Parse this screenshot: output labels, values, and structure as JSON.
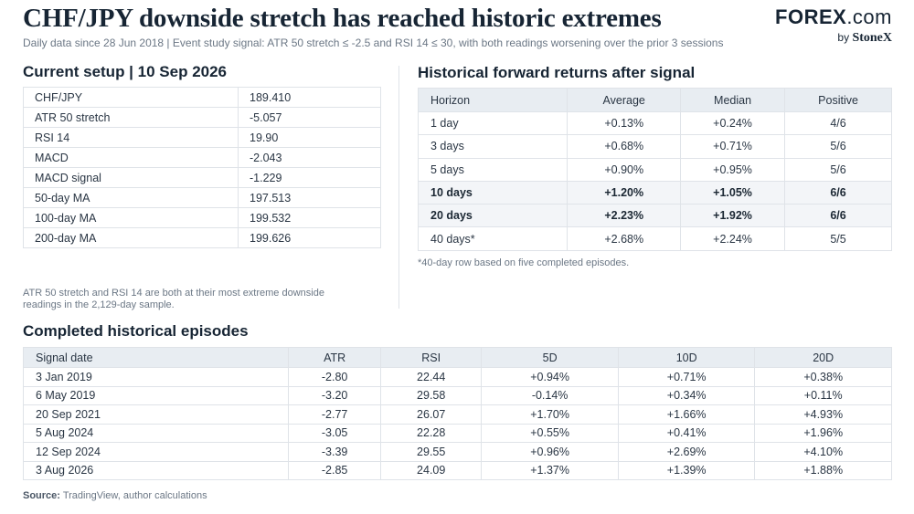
{
  "header": {
    "title": "CHF/JPY downside stretch has reached historic extremes",
    "subtitle": "Daily data since 28 Jun 2018 | Event study signal: ATR 50 stretch ≤ -2.5 and RSI 14 ≤ 30, with both readings worsening over the prior 3 sessions"
  },
  "logo": {
    "main_left": "FOREX",
    "main_right": ".com",
    "by": "by",
    "brand": "StoneX"
  },
  "setup": {
    "title": "Current setup | 10 Sep 2026",
    "rows": [
      {
        "label": "CHF/JPY",
        "value": "189.410"
      },
      {
        "label": "ATR 50 stretch",
        "value": "-5.057"
      },
      {
        "label": "RSI 14",
        "value": "19.90"
      },
      {
        "label": "MACD",
        "value": "-2.043"
      },
      {
        "label": "MACD signal",
        "value": "-1.229"
      },
      {
        "label": "50-day MA",
        "value": "197.513"
      },
      {
        "label": "100-day MA",
        "value": "199.532"
      },
      {
        "label": "200-day MA",
        "value": "199.626"
      }
    ],
    "note_line1": "ATR 50 stretch and RSI 14 are both at their most extreme downside",
    "note_line2": "readings in the 2,129-day sample."
  },
  "forward": {
    "title": "Historical forward returns after signal",
    "headers": [
      "Horizon",
      "Average",
      "Median",
      "Positive"
    ],
    "rows": [
      {
        "horizon": "1 day",
        "average": "+0.13%",
        "median": "+0.24%",
        "positive": "4/6"
      },
      {
        "horizon": "3 days",
        "average": "+0.68%",
        "median": "+0.71%",
        "positive": "5/6"
      },
      {
        "horizon": "5 days",
        "average": "+0.90%",
        "median": "+0.95%",
        "positive": "5/6"
      },
      {
        "horizon": "10 days",
        "average": "+1.20%",
        "median": "+1.05%",
        "positive": "6/6"
      },
      {
        "horizon": "20 days",
        "average": "+2.23%",
        "median": "+1.92%",
        "positive": "6/6"
      },
      {
        "horizon": "40 days*",
        "average": "+2.68%",
        "median": "+2.24%",
        "positive": "5/5"
      }
    ],
    "footnote": "*40-day row based on five completed episodes."
  },
  "episodes": {
    "title": "Completed historical episodes",
    "headers": [
      "Signal date",
      "ATR",
      "RSI",
      "5D",
      "10D",
      "20D"
    ],
    "rows": [
      [
        "3 Jan 2019",
        "-2.80",
        "22.44",
        "+0.94%",
        "+0.71%",
        "+0.38%"
      ],
      [
        "6 May 2019",
        "-3.20",
        "29.58",
        "-0.14%",
        "+0.34%",
        "+0.11%"
      ],
      [
        "20 Sep 2021",
        "-2.77",
        "26.07",
        "+1.70%",
        "+1.66%",
        "+4.93%"
      ],
      [
        "5 Aug 2024",
        "-3.05",
        "22.28",
        "+0.55%",
        "+0.41%",
        "+1.96%"
      ],
      [
        "12 Sep 2024",
        "-3.39",
        "29.55",
        "+0.96%",
        "+2.69%",
        "+4.10%"
      ],
      [
        "3 Aug 2026",
        "-2.85",
        "24.09",
        "+1.37%",
        "+1.39%",
        "+1.88%"
      ]
    ]
  },
  "source": {
    "label": "Source:",
    "text": "TradingView, author calculations"
  }
}
